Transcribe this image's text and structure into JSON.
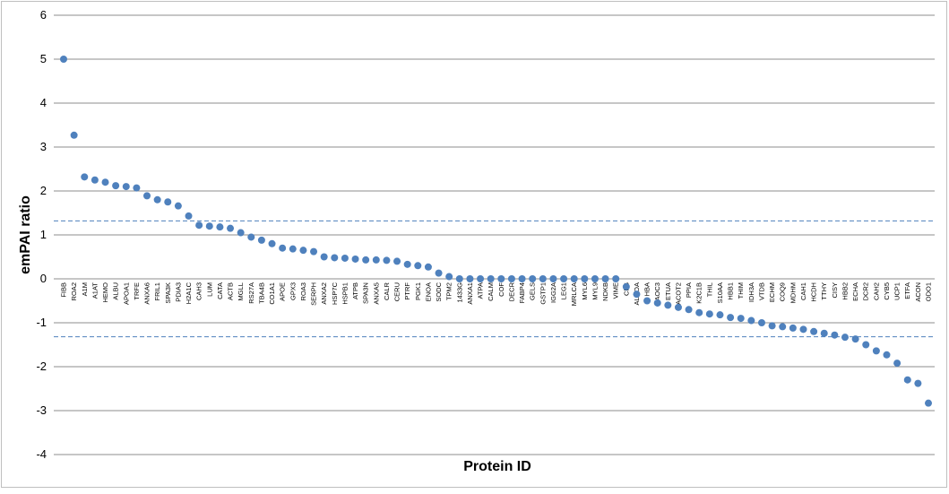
{
  "chart_data": {
    "type": "scatter",
    "title": "",
    "xlabel": "Protein ID",
    "ylabel": "emPAI ratio",
    "ylim": [
      -4,
      6
    ],
    "yticks": [
      6,
      5,
      4,
      3,
      2,
      1,
      0,
      -1,
      -2,
      -3,
      -4
    ],
    "grid": true,
    "legend": "none",
    "marker_color": "#4F81BD",
    "threshold_color": "#4F81BD",
    "gridline_color": "#8C8C8C",
    "thresholds": [
      1.32,
      -1.32
    ],
    "categories": [
      "FIBB",
      "ROA2",
      "A1M",
      "A1AT",
      "HEMO",
      "ALBU",
      "APOA1",
      "TRFE",
      "ANXA6",
      "FRIL1",
      "SPA3K",
      "PDIA3",
      "H2A1C",
      "CAH3",
      "LUM",
      "CATA",
      "ACTB",
      "MGLL",
      "RS27A",
      "TBA4B",
      "CO1A1",
      "APOE",
      "GPX3",
      "ROA3",
      "SERPH",
      "ANXA2",
      "HSP7C",
      "HSPB1",
      "ATPB",
      "SPA3N",
      "ANXA5",
      "CALR",
      "CERU",
      "PTRF",
      "PGK1",
      "ENOA",
      "SODC",
      "TPM2",
      "1433G",
      "ANXA1",
      "ATPA",
      "CALM",
      "COF",
      "DECR",
      "FABP4",
      "GELS",
      "GSTP1",
      "IGG2A",
      "LEG1",
      "MRLCA",
      "MYL6",
      "MYL9",
      "NDKB",
      "VIME",
      "CFB",
      "ALDOA",
      "HBA",
      "AOC3",
      "ETUA",
      "ACOT2",
      "PPIA",
      "K2C1B",
      "THIL",
      "S10AA",
      "HBB1",
      "THIM",
      "IDH3A",
      "VTDB",
      "ECHM",
      "COQ9",
      "MDHM",
      "CAH1",
      "HCDH",
      "TTHY",
      "CISY",
      "HBB2",
      "ECHA",
      "DCR2",
      "CAH2",
      "CYB5",
      "UCP1",
      "ETFA",
      "ACON",
      "ODO1"
    ],
    "values": [
      5.0,
      3.27,
      2.32,
      2.25,
      2.2,
      2.12,
      2.1,
      2.07,
      1.89,
      1.8,
      1.75,
      1.66,
      1.43,
      1.22,
      1.2,
      1.18,
      1.15,
      1.05,
      0.95,
      0.88,
      0.8,
      0.7,
      0.68,
      0.65,
      0.62,
      0.5,
      0.48,
      0.47,
      0.45,
      0.43,
      0.43,
      0.42,
      0.4,
      0.33,
      0.3,
      0.27,
      0.13,
      0.05,
      0.0,
      0.0,
      0.0,
      0.0,
      0.0,
      0.0,
      0.0,
      0.0,
      0.0,
      0.0,
      0.0,
      0.0,
      0.0,
      0.0,
      0.0,
      0.0,
      -0.18,
      -0.35,
      -0.5,
      -0.55,
      -0.6,
      -0.65,
      -0.7,
      -0.77,
      -0.8,
      -0.82,
      -0.88,
      -0.9,
      -0.95,
      -1.0,
      -1.07,
      -1.09,
      -1.12,
      -1.15,
      -1.2,
      -1.24,
      -1.28,
      -1.33,
      -1.37,
      -1.5,
      -1.64,
      -1.73,
      -1.92,
      -2.3,
      -2.38,
      -2.83
    ]
  }
}
